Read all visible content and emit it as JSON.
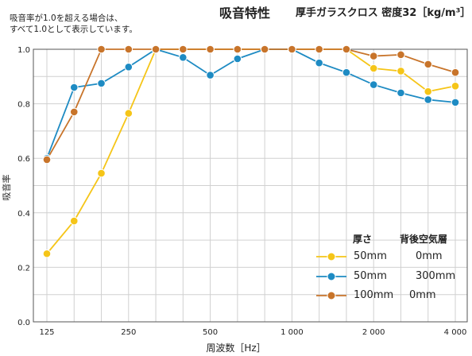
{
  "header": {
    "title": "吸音特性",
    "subtitle": "厚手ガラスクロス 密度32［kg/m³］",
    "note_line1": "吸音率が1.0を超える場合は、",
    "note_line2": "すべて1.0として表示しています。"
  },
  "legend": {
    "col1_header": "厚さ",
    "col2_header": "背後空気層",
    "entries": [
      {
        "thickness": "50mm",
        "air_layer": "0mm"
      },
      {
        "thickness": "50mm",
        "air_layer": "300mm"
      },
      {
        "thickness": "100mm",
        "air_layer": "0mm"
      }
    ]
  },
  "chart_data": {
    "type": "line",
    "xlabel": "周波数［Hz］",
    "ylabel": "吸音率",
    "xscale": "log (1/3 octave bands)",
    "ylim": [
      0,
      1.0
    ],
    "yticks": [
      "0.0",
      "0.2",
      "0.4",
      "0.6",
      "0.8",
      "1.0"
    ],
    "xtick_labels": [
      "125",
      "250",
      "500",
      "1 000",
      "2 000",
      "4 000"
    ],
    "x": [
      125,
      160,
      200,
      250,
      315,
      400,
      500,
      630,
      800,
      1000,
      1250,
      1600,
      2000,
      2500,
      3150,
      4000
    ],
    "grid": true,
    "legend_position": "bottom-right",
    "series": [
      {
        "name": "50mm 0mm",
        "color": "#f5c518",
        "values": [
          0.25,
          0.37,
          0.545,
          0.765,
          1.0,
          1.0,
          1.0,
          1.0,
          1.0,
          1.0,
          1.0,
          1.0,
          0.93,
          0.92,
          0.845,
          0.865
        ]
      },
      {
        "name": "50mm 300mm",
        "color": "#1e8bc3",
        "values": [
          0.6,
          0.86,
          0.875,
          0.935,
          1.0,
          0.97,
          0.905,
          0.965,
          1.0,
          1.0,
          0.95,
          0.915,
          0.87,
          0.84,
          0.815,
          0.805
        ]
      },
      {
        "name": "100mm 0mm",
        "color": "#c8742a",
        "values": [
          0.595,
          0.77,
          1.0,
          1.0,
          1.0,
          1.0,
          1.0,
          1.0,
          1.0,
          1.0,
          1.0,
          1.0,
          0.975,
          0.98,
          0.945,
          0.915
        ]
      }
    ]
  }
}
